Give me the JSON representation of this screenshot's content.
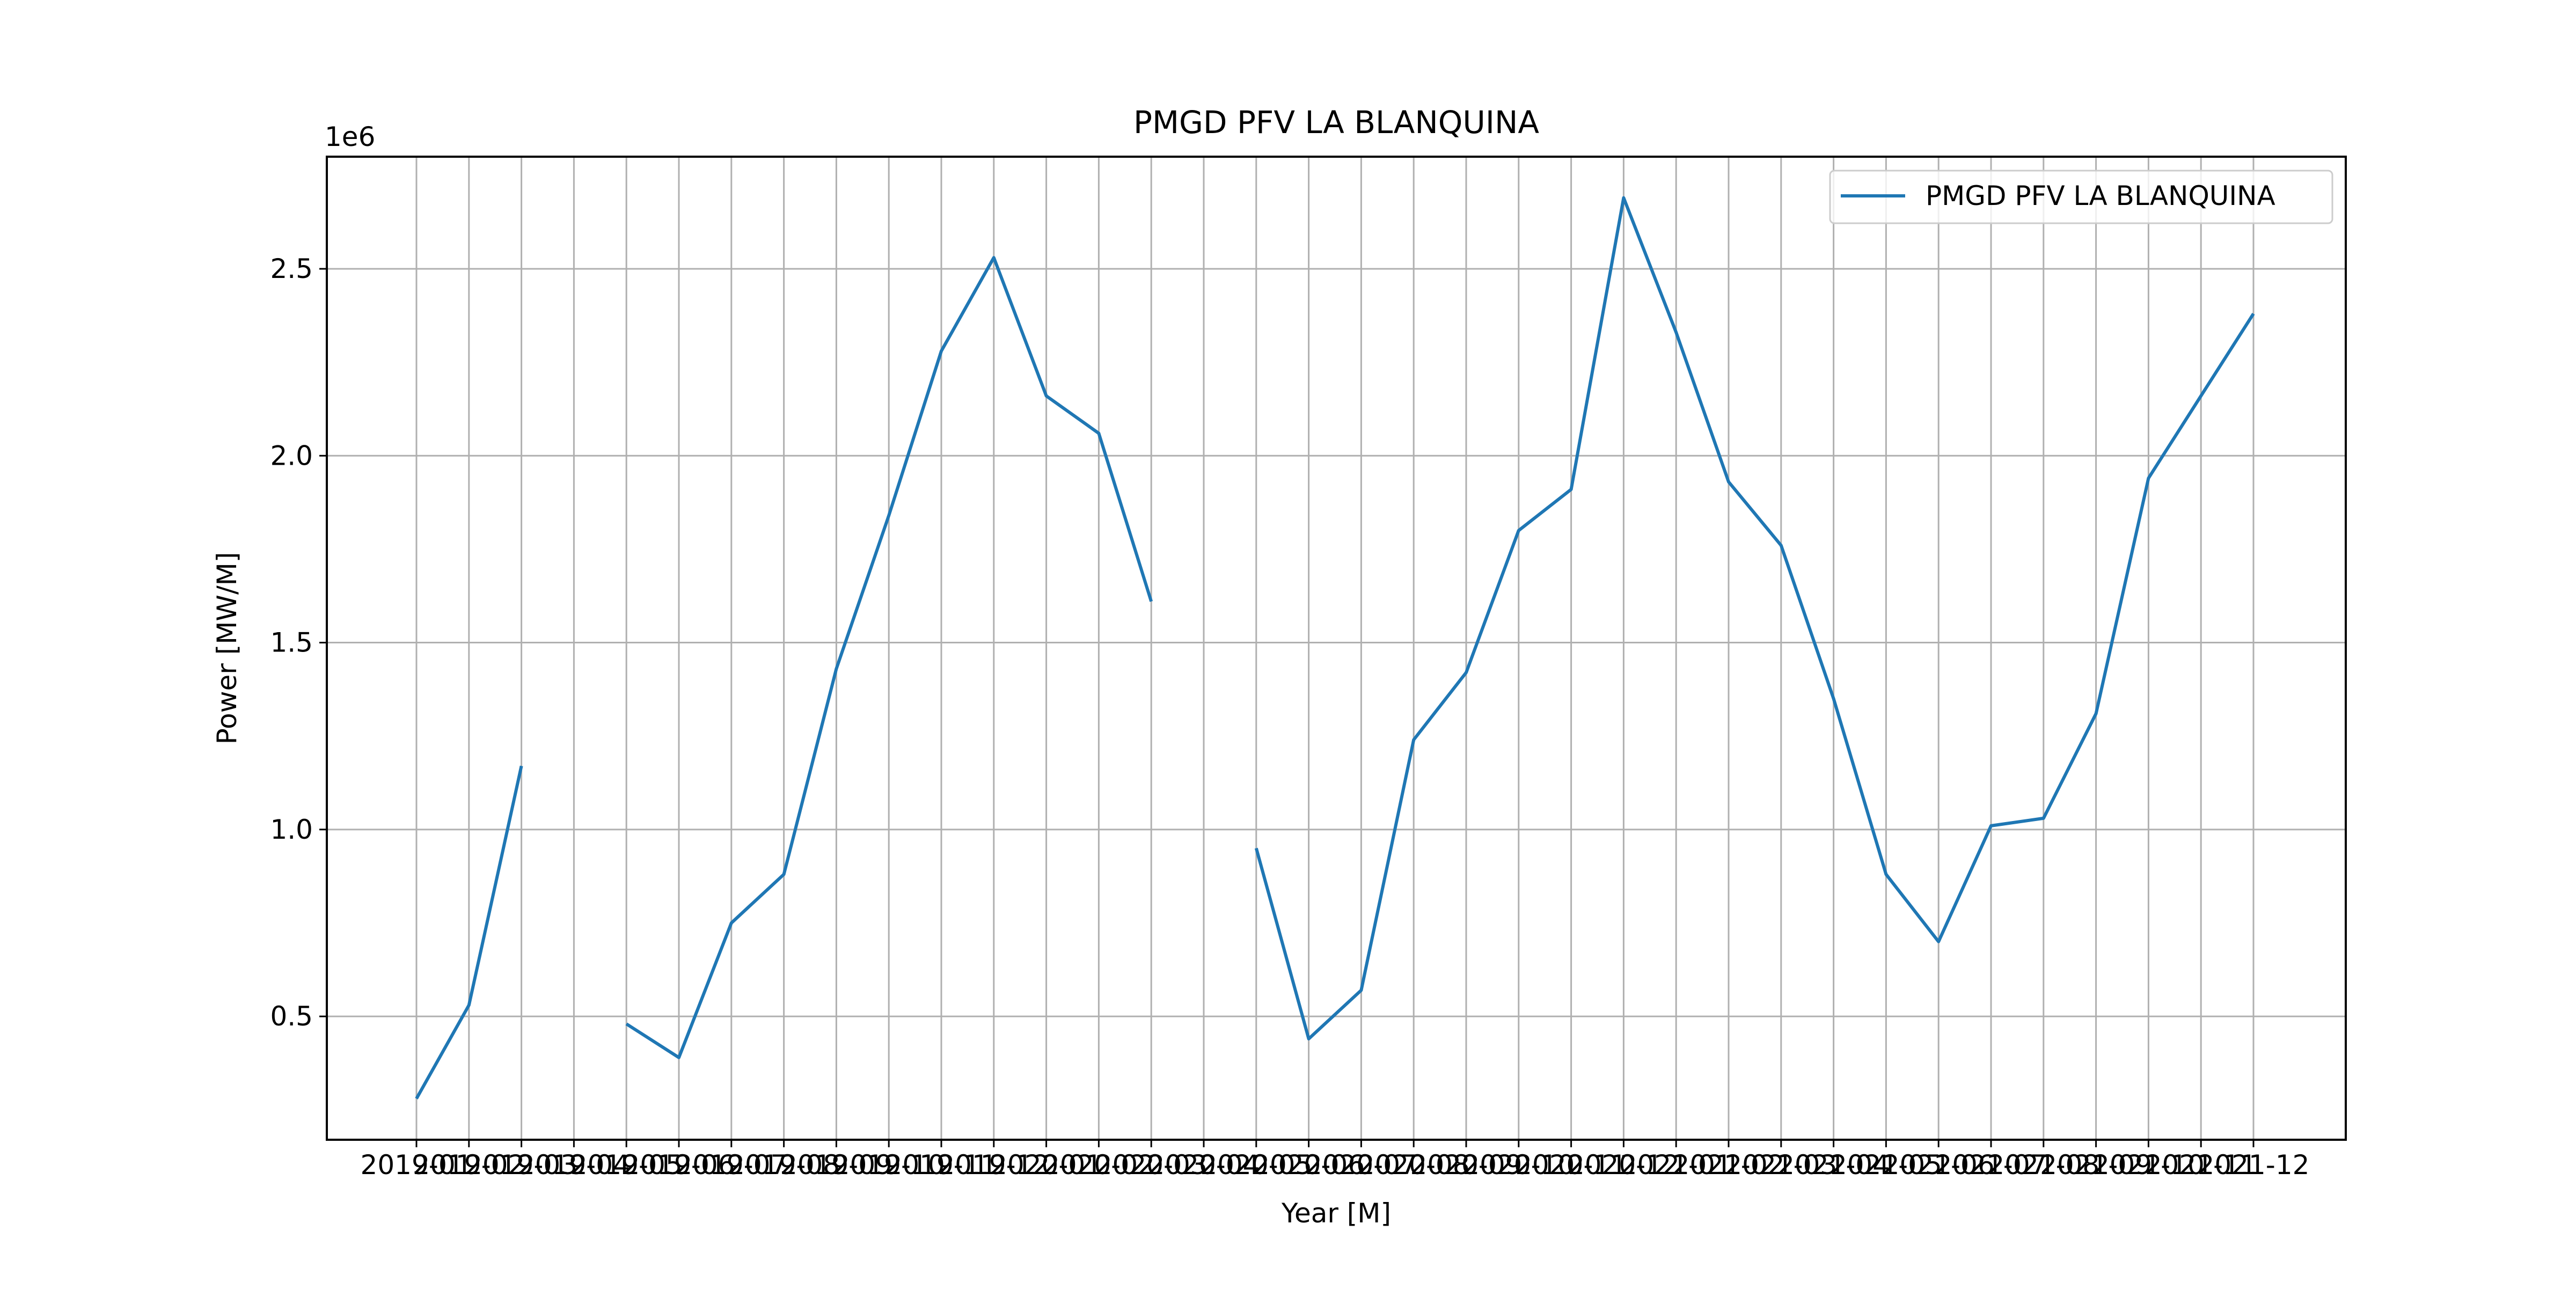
{
  "chart_data": {
    "type": "line",
    "title": "PMGD PFV LA BLANQUINA",
    "xlabel": "Year [M]",
    "ylabel": "Power [MW/M]",
    "y_multiplier_label": "1e6",
    "x": [
      "2019-01",
      "2019-02",
      "2019-03",
      "2019-04",
      "2019-05",
      "2019-06",
      "2019-07",
      "2019-08",
      "2019-09",
      "2019-10",
      "2019-11",
      "2019-12",
      "2020-01",
      "2020-02",
      "2020-03",
      "2020-04",
      "2020-05",
      "2020-06",
      "2020-07",
      "2020-08",
      "2020-09",
      "2020-10",
      "2020-11",
      "2020-12",
      "2021-01",
      "2021-02",
      "2021-03",
      "2021-04",
      "2021-05",
      "2021-06",
      "2021-07",
      "2021-08",
      "2021-09",
      "2021-10",
      "2021-11",
      "2021-12"
    ],
    "series": [
      {
        "name": "PMGD PFV LA BLANQUINA",
        "color": "#1f77b4",
        "values": [
          0.28,
          0.53,
          1.17,
          null,
          0.48,
          0.39,
          0.75,
          0.88,
          1.43,
          1.84,
          2.28,
          2.53,
          2.16,
          2.06,
          1.61,
          null,
          0.95,
          0.44,
          0.57,
          1.24,
          1.42,
          1.8,
          1.91,
          2.69,
          2.33,
          1.93,
          1.76,
          1.35,
          0.88,
          0.7,
          1.01,
          1.03,
          1.31,
          1.94,
          2.16,
          2.38
        ]
      }
    ],
    "yticks": [
      "0.5",
      "1.0",
      "1.5",
      "2.0",
      "2.5"
    ],
    "ylim": [
      0.17,
      2.8
    ],
    "grid": true,
    "legend_position": "top-right"
  }
}
